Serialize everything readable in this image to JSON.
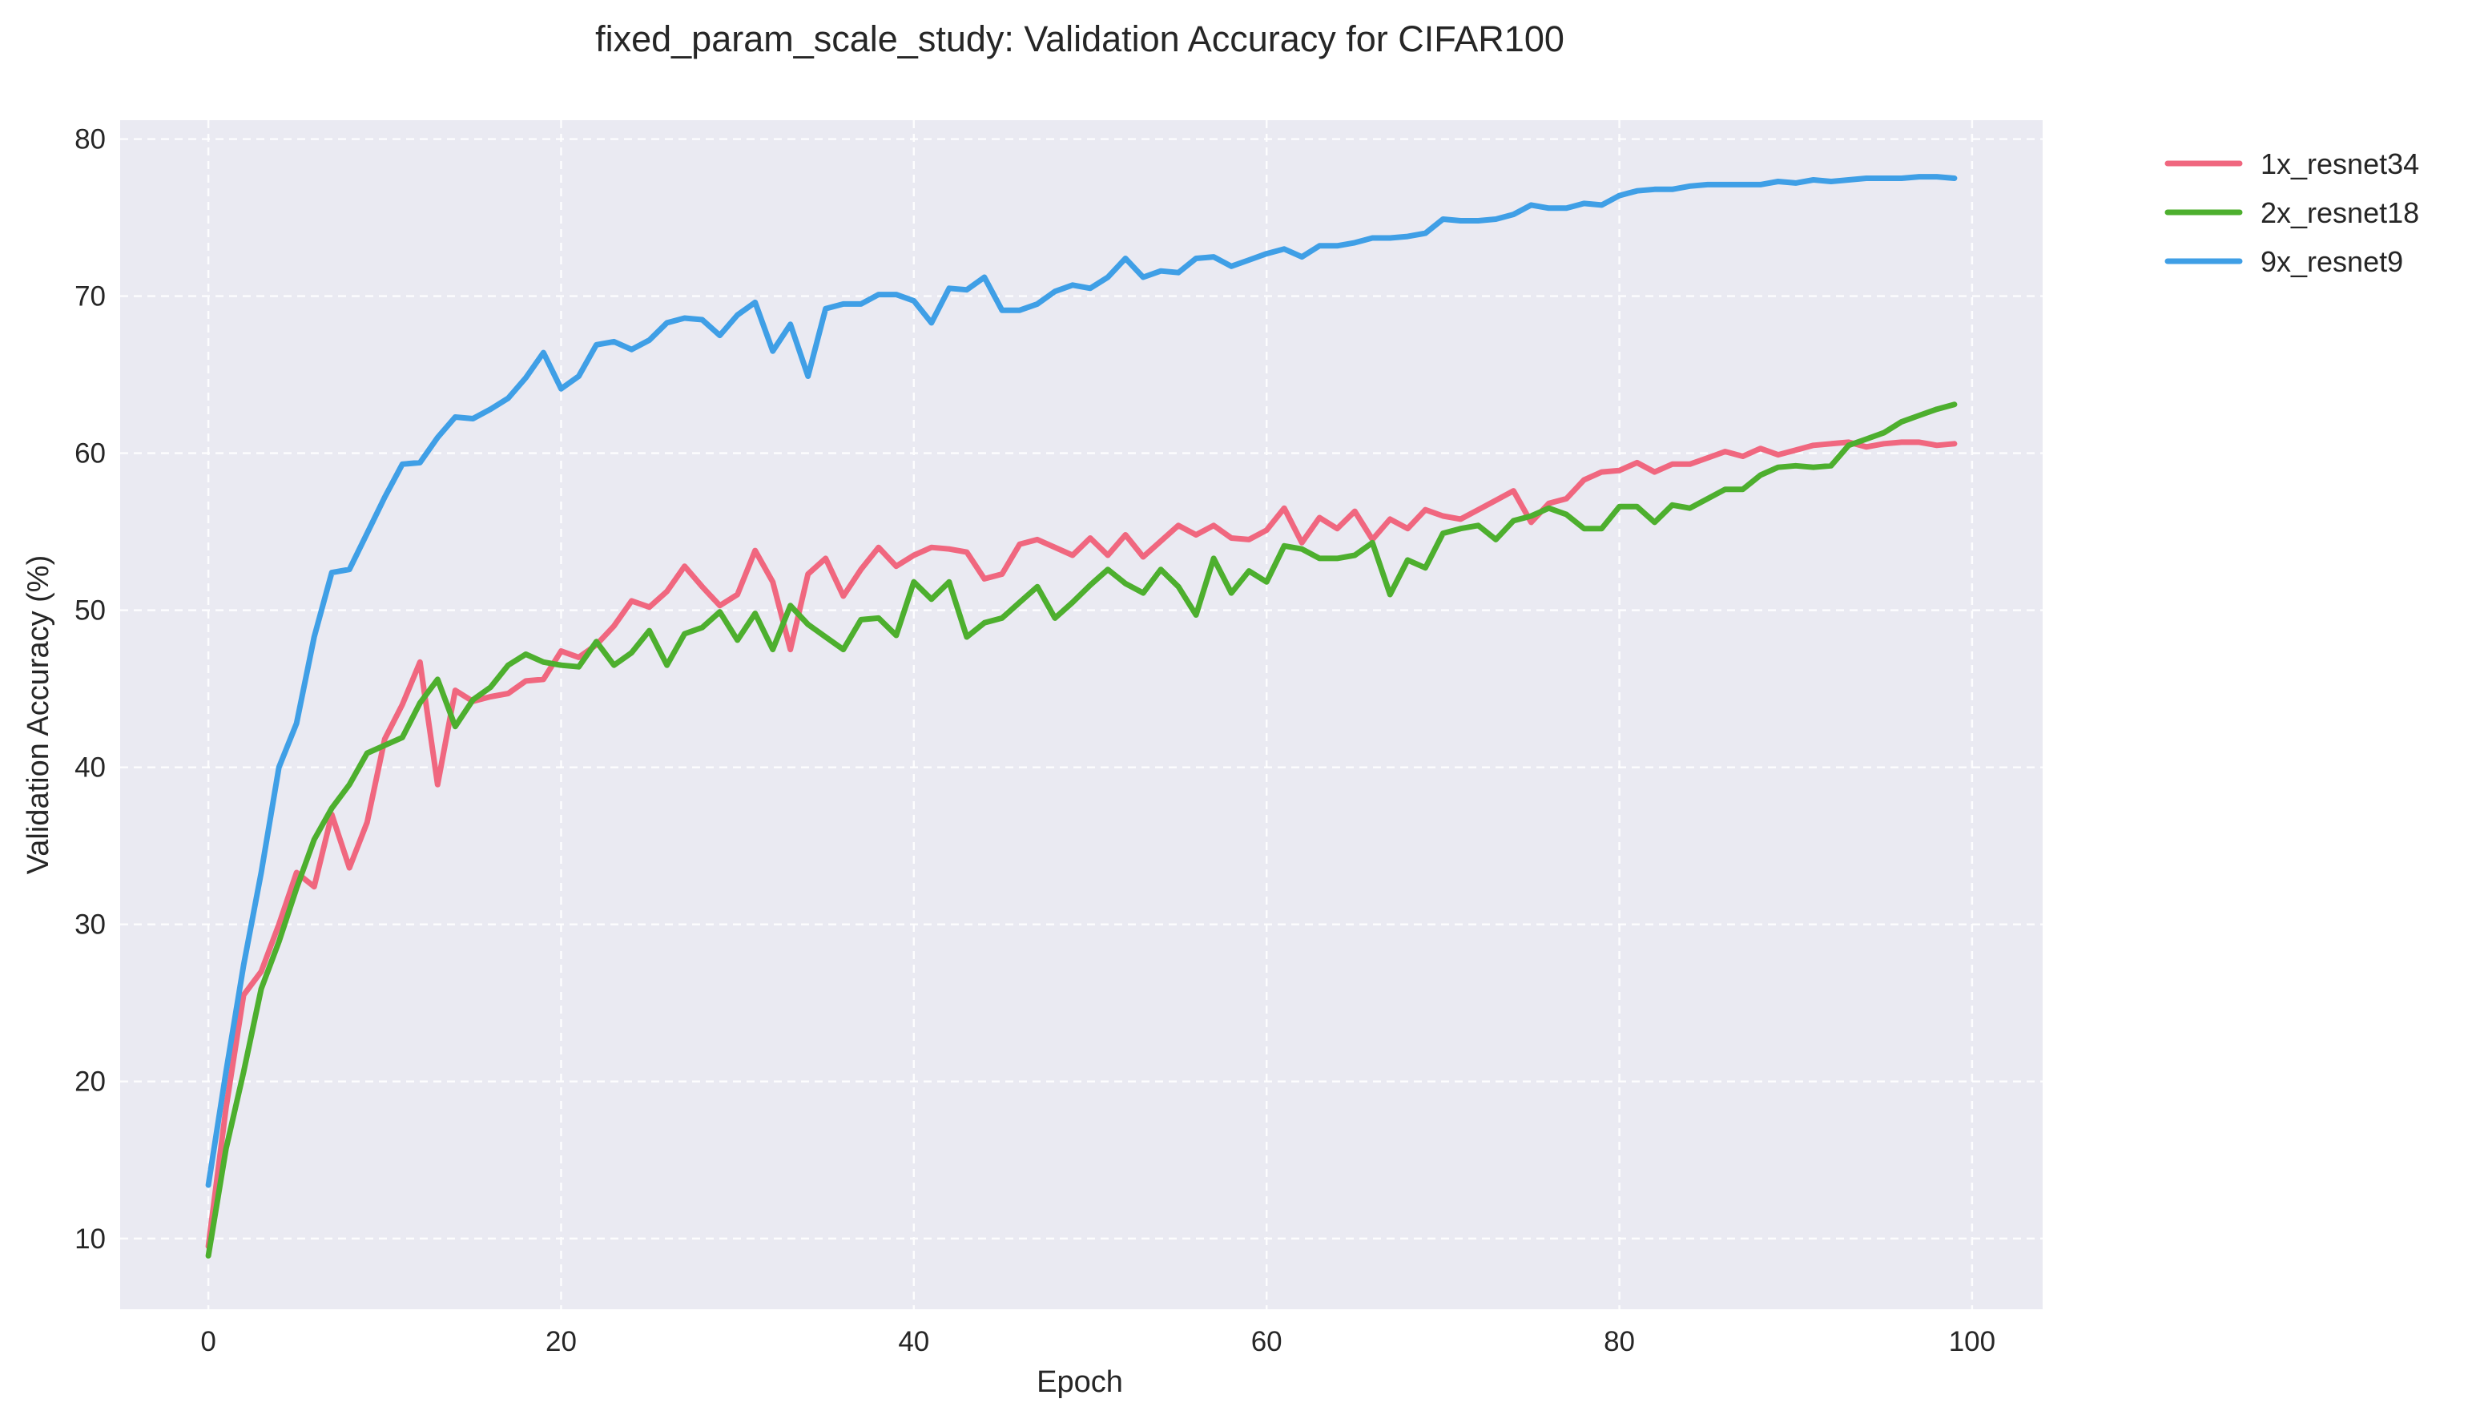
{
  "chart_data": {
    "type": "line",
    "title": "fixed_param_scale_study: Validation Accuracy for CIFAR100",
    "xlabel": "Epoch",
    "ylabel": "Validation Accuracy (%)",
    "xlim": [
      -5,
      104
    ],
    "ylim": [
      5.5,
      81.2
    ],
    "xticks": [
      0,
      20,
      40,
      60,
      80,
      100
    ],
    "yticks": [
      10,
      20,
      30,
      40,
      50,
      60,
      70,
      80
    ],
    "grid": true,
    "legend_position": "outside-right-top",
    "x": [
      0,
      1,
      2,
      3,
      4,
      5,
      6,
      7,
      8,
      9,
      10,
      11,
      12,
      13,
      14,
      15,
      16,
      17,
      18,
      19,
      20,
      21,
      22,
      23,
      24,
      25,
      26,
      27,
      28,
      29,
      30,
      31,
      32,
      33,
      34,
      35,
      36,
      37,
      38,
      39,
      40,
      41,
      42,
      43,
      44,
      45,
      46,
      47,
      48,
      49,
      50,
      51,
      52,
      53,
      54,
      55,
      56,
      57,
      58,
      59,
      60,
      61,
      62,
      63,
      64,
      65,
      66,
      67,
      68,
      69,
      70,
      71,
      72,
      73,
      74,
      75,
      76,
      77,
      78,
      79,
      80,
      81,
      82,
      83,
      84,
      85,
      86,
      87,
      88,
      89,
      90,
      91,
      92,
      93,
      94,
      95,
      96,
      97,
      98,
      99
    ],
    "series": [
      {
        "name": "1x_resnet34",
        "color": "#f0677f",
        "values": [
          9.5,
          18.3,
          25.5,
          27.0,
          30.0,
          33.3,
          32.4,
          37.0,
          33.6,
          36.5,
          41.8,
          44.0,
          46.7,
          38.9,
          44.9,
          44.2,
          44.5,
          44.7,
          45.5,
          45.6,
          47.4,
          47.0,
          47.8,
          49.0,
          50.6,
          50.2,
          51.2,
          52.8,
          51.5,
          50.3,
          51.0,
          53.8,
          51.8,
          47.5,
          52.3,
          53.3,
          50.9,
          52.6,
          54.0,
          52.8,
          53.5,
          54.0,
          53.9,
          53.7,
          52.0,
          52.3,
          54.2,
          54.5,
          54.0,
          53.5,
          54.6,
          53.5,
          54.8,
          53.4,
          54.4,
          55.4,
          54.8,
          55.4,
          54.6,
          54.5,
          55.1,
          56.5,
          54.3,
          55.9,
          55.2,
          56.3,
          54.5,
          55.8,
          55.2,
          56.4,
          56.0,
          55.8,
          56.4,
          57.0,
          57.6,
          55.6,
          56.8,
          57.1,
          58.3,
          58.8,
          58.9,
          59.4,
          58.8,
          59.3,
          59.3,
          59.7,
          60.1,
          59.8,
          60.3,
          59.9,
          60.2,
          60.5,
          60.6,
          60.7,
          60.4,
          60.6,
          60.7,
          60.7,
          60.5,
          60.6
        ]
      },
      {
        "name": "2x_resnet18",
        "color": "#4daf2e",
        "values": [
          8.9,
          15.7,
          20.6,
          25.9,
          28.9,
          32.3,
          35.4,
          37.4,
          38.9,
          40.9,
          41.4,
          41.9,
          44.1,
          45.6,
          42.6,
          44.3,
          45.1,
          46.5,
          47.2,
          46.7,
          46.5,
          46.4,
          48.0,
          46.5,
          47.3,
          48.7,
          46.5,
          48.5,
          48.9,
          49.9,
          48.1,
          49.8,
          47.5,
          50.3,
          49.1,
          48.3,
          47.5,
          49.4,
          49.5,
          48.4,
          51.8,
          50.7,
          51.8,
          48.3,
          49.2,
          49.5,
          50.5,
          51.5,
          49.5,
          50.5,
          51.6,
          52.6,
          51.7,
          51.1,
          52.6,
          51.5,
          49.7,
          53.3,
          51.1,
          52.5,
          51.8,
          54.1,
          53.9,
          53.3,
          53.3,
          53.5,
          54.3,
          51.0,
          53.2,
          52.7,
          54.9,
          55.2,
          55.4,
          54.5,
          55.7,
          56.0,
          56.5,
          56.1,
          55.2,
          55.2,
          56.6,
          56.6,
          55.6,
          56.7,
          56.5,
          57.1,
          57.7,
          57.7,
          58.6,
          59.1,
          59.2,
          59.1,
          59.2,
          60.5,
          60.9,
          61.3,
          62.0,
          62.4,
          62.8,
          63.1
        ]
      },
      {
        "name": "9x_resnet9",
        "color": "#3f9fe6",
        "values": [
          13.4,
          20.6,
          27.4,
          33.3,
          40.0,
          42.8,
          48.3,
          52.4,
          52.6,
          54.9,
          57.2,
          59.3,
          59.4,
          61.0,
          62.3,
          62.2,
          62.8,
          63.5,
          64.8,
          66.4,
          64.1,
          64.9,
          66.9,
          67.1,
          66.6,
          67.2,
          68.3,
          68.6,
          68.5,
          67.5,
          68.8,
          69.6,
          66.5,
          68.2,
          64.9,
          69.2,
          69.5,
          69.5,
          70.1,
          70.1,
          69.7,
          68.3,
          70.5,
          70.4,
          71.2,
          69.1,
          69.1,
          69.5,
          70.3,
          70.7,
          70.5,
          71.2,
          72.4,
          71.2,
          71.6,
          71.5,
          72.4,
          72.5,
          71.9,
          72.3,
          72.7,
          73.0,
          72.5,
          73.2,
          73.2,
          73.4,
          73.7,
          73.7,
          73.8,
          74.0,
          74.9,
          74.8,
          74.8,
          74.9,
          75.2,
          75.8,
          75.6,
          75.6,
          75.9,
          75.8,
          76.4,
          76.7,
          76.8,
          76.8,
          77.0,
          77.1,
          77.1,
          77.1,
          77.1,
          77.3,
          77.2,
          77.4,
          77.3,
          77.4,
          77.5,
          77.5,
          77.5,
          77.6,
          77.6,
          77.5
        ]
      }
    ]
  }
}
